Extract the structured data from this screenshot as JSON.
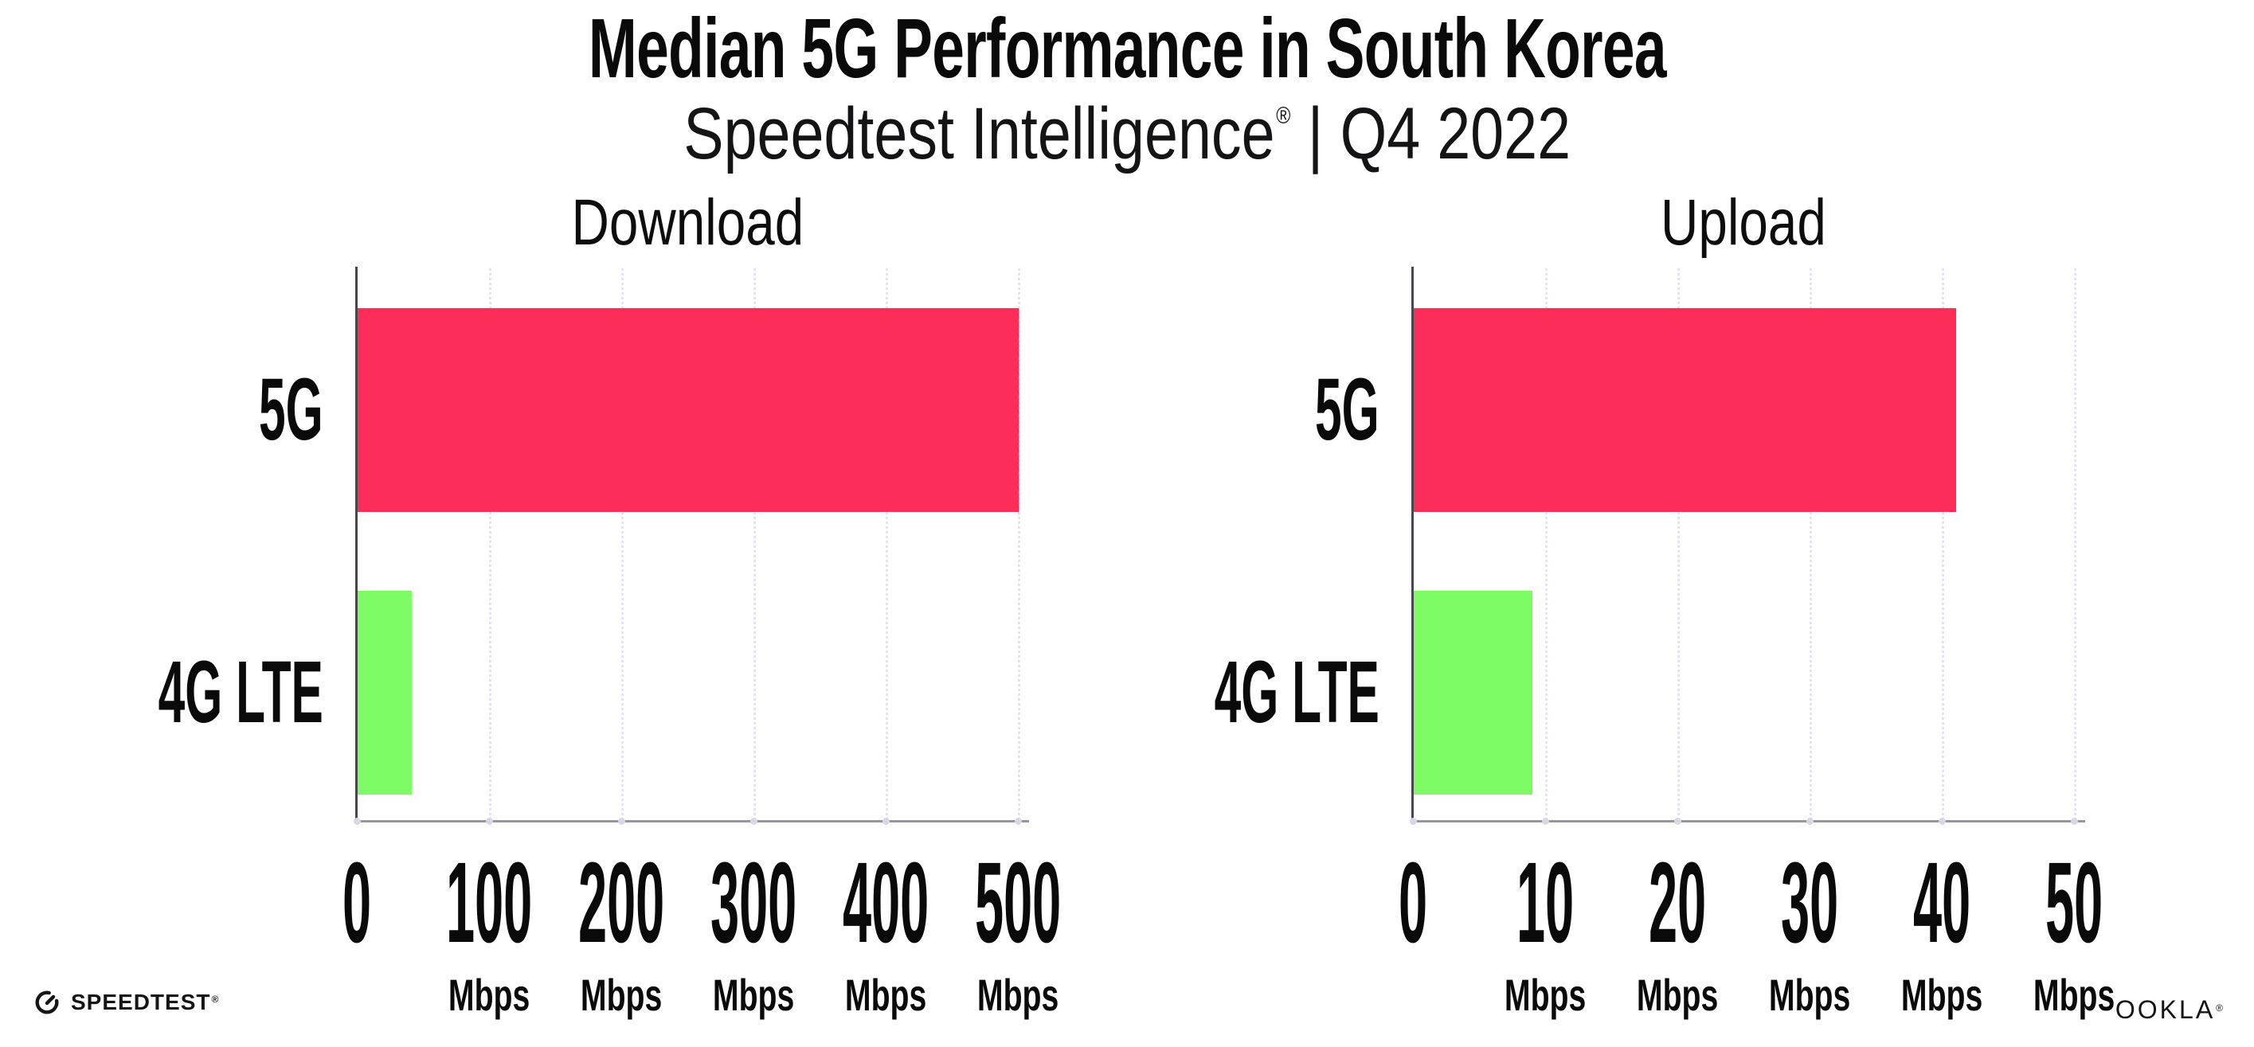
{
  "header": {
    "title": "Median 5G Performance in South Korea",
    "subtitle_brand": "Speedtest Intelligence",
    "registered_mark": "®",
    "subtitle_separator": "|",
    "subtitle_period": "Q4 2022"
  },
  "chart_data": [
    {
      "type": "bar",
      "orientation": "horizontal",
      "title": "Download",
      "categories": [
        "5G",
        "4G LTE"
      ],
      "values": [
        500,
        41
      ],
      "unit": "Mbps",
      "bar_colors": [
        "#FC2D58",
        "#7DFC66"
      ],
      "xlim": [
        0,
        500
      ],
      "xticks": [
        0,
        100,
        200,
        300,
        400,
        500
      ],
      "grid": "dotted-vertical",
      "legend": "none"
    },
    {
      "type": "bar",
      "orientation": "horizontal",
      "title": "Upload",
      "categories": [
        "5G",
        "4G LTE"
      ],
      "values": [
        41,
        9
      ],
      "unit": "Mbps",
      "bar_colors": [
        "#FC2D58",
        "#7DFC66"
      ],
      "xlim": [
        0,
        50
      ],
      "xticks": [
        0,
        10,
        20,
        30,
        40,
        50
      ],
      "grid": "dotted-vertical",
      "legend": "none"
    }
  ],
  "footer": {
    "speedtest_logo_text": "SPEEDTEST",
    "speedtest_mark": "®",
    "ookla_logo_text": "OOKLA",
    "ookla_mark": "®"
  },
  "colors": {
    "bar_5g": "#FC2D58",
    "bar_4g_lte": "#7DFC66",
    "gridline": "#E4E4EE",
    "x_axis": "#96969C",
    "y_axis": "#47474C",
    "text": "#0A0A0B",
    "background": "#FFFFFF"
  }
}
